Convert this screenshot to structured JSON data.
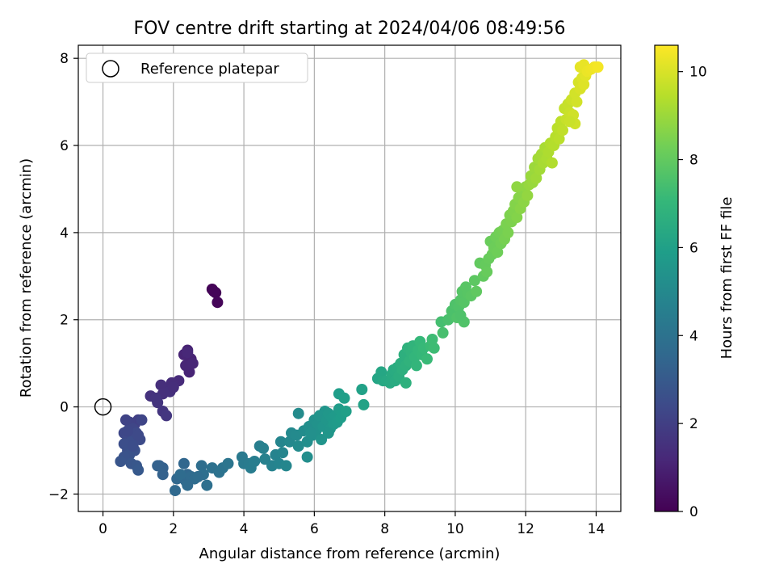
{
  "chart_data": {
    "type": "scatter",
    "title": "FOV centre drift starting at 2024/04/06 08:49:56",
    "xlabel": "Angular distance from reference (arcmin)",
    "ylabel": "Rotation from reference (arcmin)",
    "xlim": [
      -0.7,
      14.7
    ],
    "ylim": [
      -2.4,
      8.3
    ],
    "xticks": [
      0,
      2,
      4,
      6,
      8,
      10,
      12,
      14
    ],
    "yticks": [
      -2,
      0,
      2,
      4,
      6,
      8
    ],
    "grid": true,
    "legend": {
      "placement": "top-left",
      "entries": [
        "Reference platepar"
      ]
    },
    "reference_point": {
      "x": 0,
      "y": 0,
      "label": "Reference platepar"
    },
    "colorbar": {
      "label": "Hours from first FF file",
      "colormap": "viridis",
      "range": [
        0,
        10.6
      ],
      "ticks": [
        0,
        2,
        4,
        6,
        8,
        10
      ]
    },
    "colormap_stops": [
      "#440154",
      "#482878",
      "#3e4989",
      "#31688e",
      "#26828e",
      "#1f9e89",
      "#35b779",
      "#6ece58",
      "#b5de2b",
      "#fde725"
    ],
    "series": [
      {
        "description_points": "x, y, hours",
        "points": [
          [
            3.1,
            2.7,
            0.05
          ],
          [
            3.2,
            2.62,
            0.1
          ],
          [
            3.25,
            2.4,
            0.15
          ],
          [
            3.15,
            2.65,
            0.12
          ],
          [
            2.4,
            1.3,
            1.0
          ],
          [
            2.5,
            1.1,
            1.05
          ],
          [
            2.3,
            1.2,
            1.08
          ],
          [
            2.45,
            0.8,
            1.1
          ],
          [
            2.35,
            0.95,
            1.12
          ],
          [
            2.55,
            1.0,
            1.15
          ],
          [
            2.4,
            1.25,
            1.18
          ],
          [
            2.15,
            0.6,
            1.3
          ],
          [
            1.95,
            0.55,
            1.35
          ],
          [
            1.8,
            0.4,
            1.4
          ],
          [
            1.65,
            0.5,
            1.42
          ],
          [
            1.7,
            0.3,
            1.45
          ],
          [
            1.9,
            0.35,
            1.48
          ],
          [
            1.35,
            0.25,
            1.55
          ],
          [
            1.55,
            0.1,
            1.6
          ],
          [
            1.7,
            -0.1,
            1.65
          ],
          [
            1.8,
            -0.2,
            1.7
          ],
          [
            1.5,
            0.2,
            1.62
          ],
          [
            2.0,
            0.45,
            1.4
          ],
          [
            1.0,
            -0.3,
            2.0
          ],
          [
            0.9,
            -0.4,
            2.05
          ],
          [
            0.75,
            -0.35,
            2.1
          ],
          [
            0.65,
            -0.3,
            2.15
          ],
          [
            1.1,
            -0.3,
            2.2
          ],
          [
            0.85,
            -0.5,
            2.25
          ],
          [
            0.6,
            -0.6,
            2.3
          ],
          [
            0.7,
            -0.7,
            2.35
          ],
          [
            0.95,
            -0.6,
            2.4
          ],
          [
            1.05,
            -0.75,
            2.45
          ],
          [
            0.8,
            -0.8,
            2.5
          ],
          [
            0.6,
            -0.85,
            2.55
          ],
          [
            0.7,
            -1.0,
            2.6
          ],
          [
            0.9,
            -1.0,
            2.65
          ],
          [
            0.75,
            -1.1,
            2.7
          ],
          [
            0.6,
            -1.15,
            2.75
          ],
          [
            0.5,
            -1.25,
            2.8
          ],
          [
            0.8,
            -1.3,
            2.85
          ],
          [
            0.95,
            -1.35,
            2.9
          ],
          [
            1.0,
            -1.45,
            2.95
          ],
          [
            0.85,
            -0.9,
            2.5
          ],
          [
            1.0,
            -0.65,
            2.4
          ],
          [
            0.7,
            -0.55,
            2.3
          ],
          [
            1.6,
            -1.35,
            3.2
          ],
          [
            1.7,
            -1.4,
            3.25
          ],
          [
            1.7,
            -1.55,
            3.3
          ],
          [
            1.55,
            -1.35,
            3.3
          ],
          [
            2.3,
            -1.3,
            3.5
          ],
          [
            2.4,
            -1.55,
            3.55
          ],
          [
            2.35,
            -1.7,
            3.6
          ],
          [
            2.5,
            -1.6,
            3.65
          ],
          [
            2.6,
            -1.65,
            3.7
          ],
          [
            2.1,
            -1.65,
            3.55
          ],
          [
            2.05,
            -1.92,
            3.6
          ],
          [
            2.4,
            -1.8,
            3.65
          ],
          [
            2.2,
            -1.55,
            3.7
          ],
          [
            2.8,
            -1.35,
            3.8
          ],
          [
            2.85,
            -1.55,
            3.85
          ],
          [
            2.95,
            -1.8,
            3.9
          ],
          [
            3.1,
            -1.4,
            3.95
          ],
          [
            3.3,
            -1.5,
            4.0
          ],
          [
            3.4,
            -1.4,
            4.05
          ],
          [
            3.55,
            -1.3,
            4.1
          ],
          [
            2.7,
            -1.6,
            3.75
          ],
          [
            3.95,
            -1.15,
            4.3
          ],
          [
            4.0,
            -1.3,
            4.35
          ],
          [
            4.15,
            -1.3,
            4.4
          ],
          [
            4.2,
            -1.4,
            4.45
          ],
          [
            4.3,
            -1.25,
            4.5
          ],
          [
            4.45,
            -0.9,
            4.55
          ],
          [
            4.55,
            -0.95,
            4.6
          ],
          [
            4.6,
            -1.2,
            4.65
          ],
          [
            4.8,
            -1.35,
            4.7
          ],
          [
            4.9,
            -1.1,
            4.75
          ],
          [
            5.0,
            -1.3,
            4.8
          ],
          [
            5.05,
            -0.8,
            4.85
          ],
          [
            5.1,
            -1.05,
            4.85
          ],
          [
            5.2,
            -1.35,
            4.9
          ],
          [
            5.3,
            -0.8,
            4.95
          ],
          [
            5.35,
            -0.6,
            5.0
          ],
          [
            5.5,
            -0.65,
            5.05
          ],
          [
            5.55,
            -0.9,
            5.1
          ],
          [
            5.55,
            -0.15,
            5.1
          ],
          [
            5.7,
            -0.55,
            5.15
          ],
          [
            5.8,
            -0.8,
            5.2
          ],
          [
            5.8,
            -1.15,
            5.2
          ],
          [
            5.85,
            -0.45,
            5.25
          ],
          [
            5.95,
            -0.65,
            5.3
          ],
          [
            6.0,
            -0.3,
            5.35
          ],
          [
            6.05,
            -0.55,
            5.35
          ],
          [
            6.1,
            -0.4,
            5.4
          ],
          [
            6.15,
            -0.2,
            5.45
          ],
          [
            6.2,
            -0.75,
            5.45
          ],
          [
            6.25,
            -0.45,
            5.5
          ],
          [
            6.3,
            -0.1,
            5.5
          ],
          [
            6.35,
            -0.3,
            5.55
          ],
          [
            6.4,
            -0.15,
            5.6
          ],
          [
            6.45,
            -0.5,
            5.6
          ],
          [
            6.5,
            -0.25,
            5.65
          ],
          [
            6.55,
            -0.4,
            5.7
          ],
          [
            6.6,
            -0.2,
            5.7
          ],
          [
            6.65,
            -0.35,
            5.75
          ],
          [
            6.7,
            -0.05,
            5.8
          ],
          [
            6.75,
            -0.25,
            5.85
          ],
          [
            6.8,
            -0.15,
            5.85
          ],
          [
            6.7,
            0.3,
            5.9
          ],
          [
            6.85,
            0.2,
            5.95
          ],
          [
            6.9,
            -0.1,
            5.95
          ],
          [
            5.9,
            -0.6,
            5.3
          ],
          [
            6.4,
            -0.6,
            5.55
          ],
          [
            7.35,
            0.4,
            6.05
          ],
          [
            7.4,
            0.05,
            6.1
          ],
          [
            7.8,
            0.65,
            6.2
          ],
          [
            7.9,
            0.8,
            6.25
          ],
          [
            7.95,
            0.6,
            6.3
          ],
          [
            8.05,
            0.6,
            6.35
          ],
          [
            8.15,
            0.55,
            6.4
          ],
          [
            8.2,
            0.75,
            6.45
          ],
          [
            8.25,
            0.85,
            6.5
          ],
          [
            8.3,
            0.6,
            6.5
          ],
          [
            8.35,
            0.9,
            6.55
          ],
          [
            8.4,
            0.7,
            6.6
          ],
          [
            8.45,
            1.0,
            6.65
          ],
          [
            8.5,
            0.85,
            6.7
          ],
          [
            8.55,
            1.2,
            6.7
          ],
          [
            8.6,
            0.95,
            6.75
          ],
          [
            8.6,
            0.55,
            6.75
          ],
          [
            8.65,
            1.35,
            6.8
          ],
          [
            8.7,
            1.05,
            6.85
          ],
          [
            8.75,
            1.25,
            6.85
          ],
          [
            8.8,
            1.4,
            6.9
          ],
          [
            8.85,
            1.15,
            6.95
          ],
          [
            8.9,
            0.95,
            6.95
          ],
          [
            8.95,
            1.3,
            7.0
          ],
          [
            9.0,
            1.5,
            7.05
          ],
          [
            9.05,
            1.2,
            7.05
          ],
          [
            9.1,
            1.35,
            7.1
          ],
          [
            9.2,
            1.1,
            7.15
          ],
          [
            9.3,
            1.4,
            7.2
          ],
          [
            9.35,
            1.55,
            7.25
          ],
          [
            9.4,
            1.35,
            7.25
          ],
          [
            9.6,
            1.95,
            7.4
          ],
          [
            9.65,
            1.7,
            7.45
          ],
          [
            9.8,
            2.0,
            7.5
          ],
          [
            9.9,
            2.2,
            7.55
          ],
          [
            9.95,
            2.1,
            7.55
          ],
          [
            10.0,
            2.35,
            7.6
          ],
          [
            10.05,
            2.05,
            7.65
          ],
          [
            10.1,
            2.3,
            7.65
          ],
          [
            10.15,
            2.45,
            7.7
          ],
          [
            10.2,
            2.65,
            7.75
          ],
          [
            10.25,
            2.4,
            7.75
          ],
          [
            10.3,
            2.75,
            7.8
          ],
          [
            10.35,
            2.6,
            7.8
          ],
          [
            10.45,
            2.55,
            7.85
          ],
          [
            10.55,
            2.9,
            7.9
          ],
          [
            10.6,
            2.65,
            7.95
          ],
          [
            10.7,
            3.3,
            8.0
          ],
          [
            10.8,
            3.0,
            8.0
          ],
          [
            10.85,
            3.25,
            8.05
          ],
          [
            10.9,
            3.1,
            8.1
          ],
          [
            10.95,
            3.4,
            8.1
          ],
          [
            11.0,
            3.8,
            8.15
          ],
          [
            11.05,
            3.5,
            8.15
          ],
          [
            11.1,
            3.65,
            8.2
          ],
          [
            11.15,
            3.9,
            8.25
          ],
          [
            11.2,
            3.55,
            8.25
          ],
          [
            11.25,
            4.0,
            8.3
          ],
          [
            11.3,
            3.75,
            8.3
          ],
          [
            11.35,
            4.05,
            8.35
          ],
          [
            11.4,
            3.85,
            8.4
          ],
          [
            11.45,
            4.2,
            8.45
          ],
          [
            11.5,
            4.0,
            8.45
          ],
          [
            11.55,
            4.4,
            8.5
          ],
          [
            11.6,
            4.25,
            8.5
          ],
          [
            11.65,
            4.5,
            8.55
          ],
          [
            11.7,
            4.65,
            8.6
          ],
          [
            11.75,
            4.35,
            8.6
          ],
          [
            11.8,
            4.8,
            8.65
          ],
          [
            11.85,
            4.55,
            8.7
          ],
          [
            11.9,
            4.95,
            8.7
          ],
          [
            11.95,
            4.7,
            8.75
          ],
          [
            12.0,
            5.05,
            8.8
          ],
          [
            11.75,
            5.05,
            8.8
          ],
          [
            10.25,
            1.95,
            7.65
          ],
          [
            10.15,
            2.1,
            7.6
          ],
          [
            12.05,
            4.85,
            8.85
          ],
          [
            12.1,
            5.1,
            8.9
          ],
          [
            12.15,
            5.3,
            8.95
          ],
          [
            12.2,
            5.15,
            8.95
          ],
          [
            12.25,
            5.5,
            9.0
          ],
          [
            12.3,
            5.25,
            9.05
          ],
          [
            12.35,
            5.7,
            9.1
          ],
          [
            12.4,
            5.45,
            9.1
          ],
          [
            12.45,
            5.8,
            9.15
          ],
          [
            12.5,
            5.6,
            9.2
          ],
          [
            12.55,
            5.95,
            9.2
          ],
          [
            12.6,
            5.7,
            9.25
          ],
          [
            12.65,
            5.85,
            9.3
          ],
          [
            12.7,
            6.05,
            9.35
          ],
          [
            12.75,
            5.6,
            9.35
          ],
          [
            12.8,
            6.0,
            9.4
          ],
          [
            12.85,
            6.2,
            9.45
          ],
          [
            12.9,
            6.4,
            9.5
          ],
          [
            12.95,
            6.15,
            9.5
          ],
          [
            13.0,
            6.55,
            9.55
          ],
          [
            13.05,
            6.35,
            9.6
          ],
          [
            13.1,
            6.85,
            9.65
          ],
          [
            13.15,
            6.6,
            9.7
          ],
          [
            13.2,
            6.95,
            9.7
          ],
          [
            13.25,
            6.75,
            9.75
          ],
          [
            13.3,
            7.05,
            9.8
          ],
          [
            13.35,
            6.7,
            9.85
          ],
          [
            13.4,
            7.2,
            9.9
          ],
          [
            13.45,
            7.0,
            9.9
          ],
          [
            13.5,
            7.45,
            9.95
          ],
          [
            13.55,
            7.3,
            10.0
          ],
          [
            13.6,
            7.55,
            10.05
          ],
          [
            13.65,
            7.4,
            10.1
          ],
          [
            13.7,
            7.6,
            10.15
          ],
          [
            13.55,
            7.8,
            10.2
          ],
          [
            13.65,
            7.85,
            10.25
          ],
          [
            13.75,
            7.7,
            10.3
          ],
          [
            13.85,
            7.75,
            10.35
          ],
          [
            13.95,
            7.8,
            10.4
          ],
          [
            14.05,
            7.8,
            10.45
          ],
          [
            13.4,
            6.5,
            9.85
          ],
          [
            13.25,
            6.55,
            9.75
          ]
        ]
      }
    ]
  }
}
